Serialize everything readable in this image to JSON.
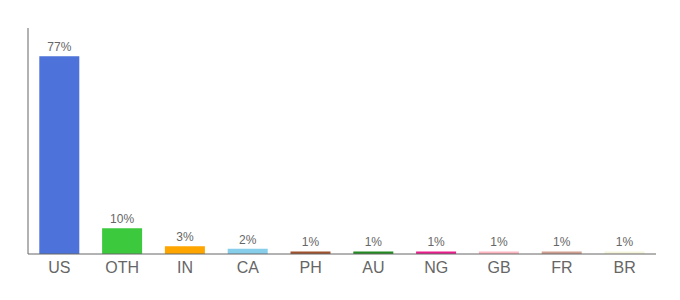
{
  "chart_data": {
    "type": "bar",
    "categories": [
      "US",
      "OTH",
      "IN",
      "CA",
      "PH",
      "AU",
      "NG",
      "GB",
      "FR",
      "BR"
    ],
    "values": [
      77,
      10,
      3,
      2,
      1,
      1,
      1,
      1,
      1,
      1
    ],
    "value_labels": [
      "77%",
      "10%",
      "3%",
      "2%",
      "1%",
      "1%",
      "1%",
      "1%",
      "1%",
      "1%"
    ],
    "data_labels": true,
    "colors": [
      "#4d72d9",
      "#3dc93d",
      "#ffa500",
      "#87ceeb",
      "#a0522d",
      "#228b22",
      "#e91e8c",
      "#ffb6c1",
      "#d2a090",
      "#f5f5dc"
    ],
    "ylim": [
      0,
      88
    ],
    "grid": false,
    "tick_labels": "x"
  }
}
